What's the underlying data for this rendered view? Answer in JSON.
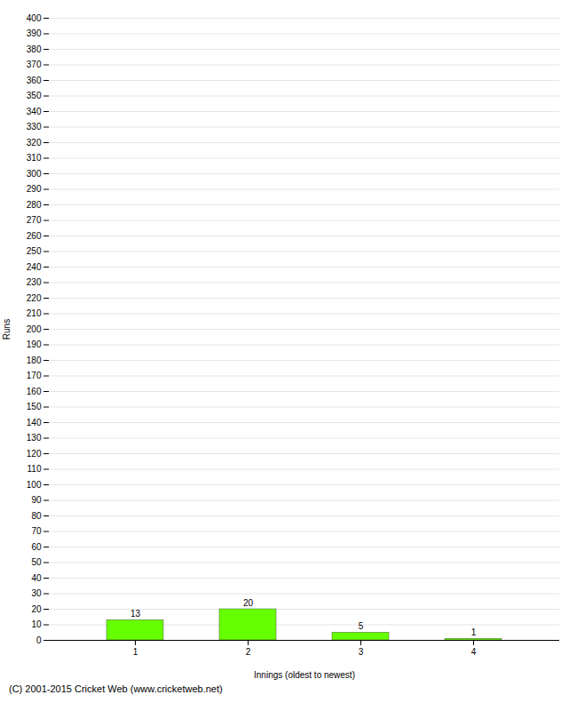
{
  "chart_data": {
    "type": "bar",
    "categories": [
      1,
      2,
      3,
      4
    ],
    "values": [
      13,
      20,
      5,
      1
    ],
    "color": "#66ff00",
    "xlabel": "Innings (oldest to newest)",
    "ylabel": "Runs",
    "ylim": [
      0,
      400
    ],
    "yticks": [
      0,
      10,
      20,
      30,
      40,
      50,
      60,
      70,
      80,
      90,
      100,
      110,
      120,
      130,
      140,
      150,
      160,
      170,
      180,
      190,
      200,
      210,
      220,
      230,
      240,
      250,
      260,
      270,
      280,
      290,
      300,
      310,
      320,
      330,
      340,
      350,
      360,
      370,
      380,
      390,
      400
    ],
    "grid": true,
    "data_labels": true,
    "caption": "(C) 2001-2015 Cricket Web (www.cricketweb.net)"
  }
}
